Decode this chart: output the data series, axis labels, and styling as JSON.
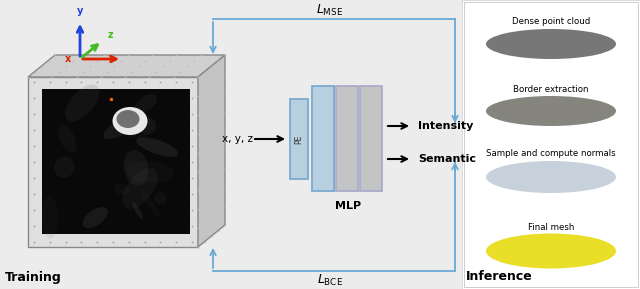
{
  "training_label": "Training",
  "inference_label": "Inference",
  "lmse_label": "$L_{\\mathrm{MSE}}$",
  "lbce_label": "$L_{\\mathrm{BCE}}$",
  "xyz_label": "x, y, z",
  "pe_label": "PE",
  "mlp_label": "MLP",
  "intensity_label": "Intensity",
  "semantic_label": "Semantic",
  "dense_pc_label": "Dense point cloud",
  "border_label": "Border extraction",
  "sample_label": "Sample and compute normals",
  "final_mesh_label": "Final mesh",
  "blue_color": "#6aaad4",
  "blue_block_fill": "#b8cfe0",
  "blue_block_edge": "#7aaacf",
  "gray_block_fill": "#c4c4c4",
  "gray_block_edge": "#aaaacc",
  "axis_x": "#dd2200",
  "axis_y": "#2244dd",
  "axis_z": "#44bb22",
  "cube_front": "#e0e0e0",
  "cube_top": "#d0d0d0",
  "cube_right": "#c4c4c4",
  "cube_edge": "#888888",
  "dot_color": "#aaaaaa",
  "bg_left": "#ececec",
  "bg_right": "#ffffff"
}
